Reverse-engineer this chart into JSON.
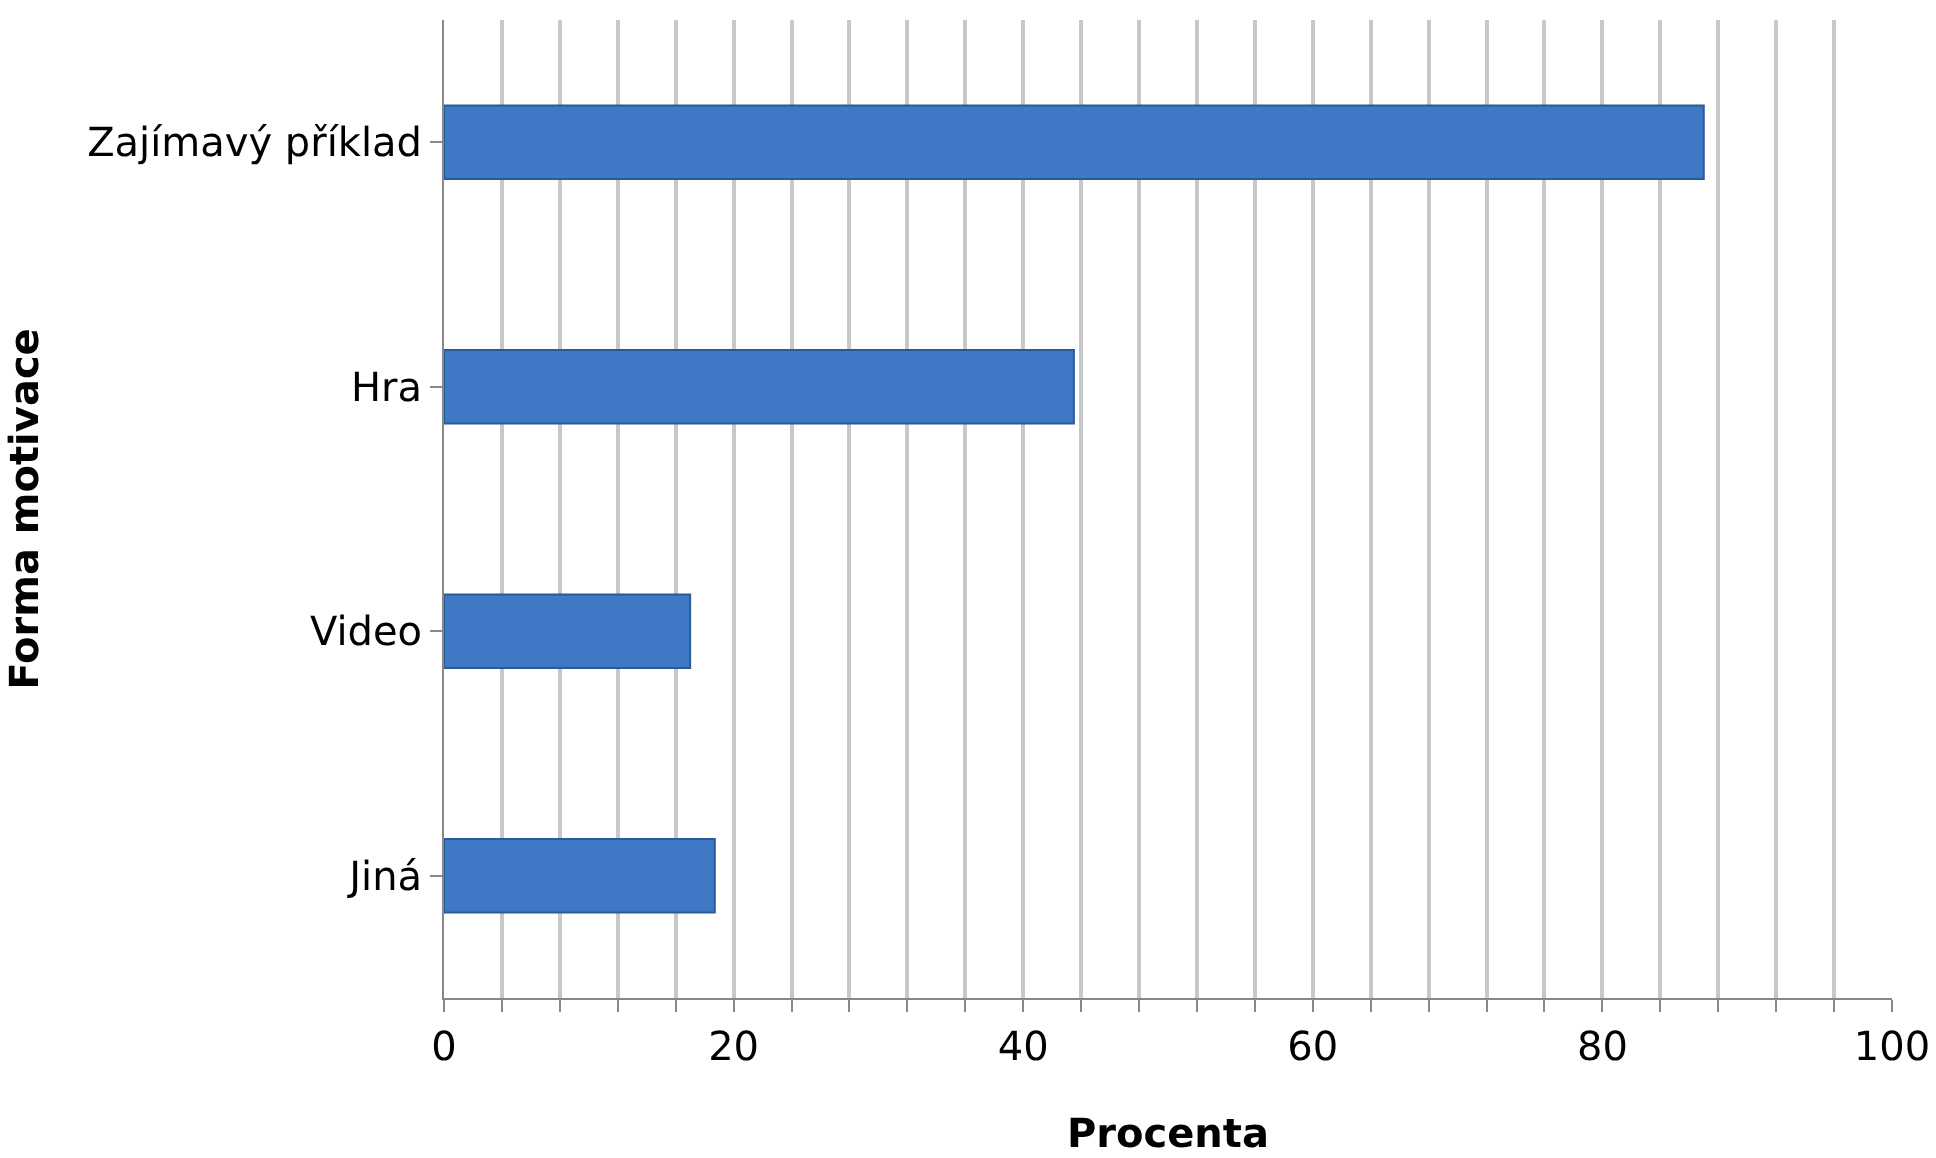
{
  "chart_data": {
    "type": "bar",
    "orientation": "horizontal",
    "xlabel": "Procenta",
    "ylabel": "Forma motivace",
    "categories": [
      "Zajímavý příklad",
      "Hra",
      "Video",
      "Jiná"
    ],
    "values": [
      87,
      43.5,
      17,
      18.7
    ],
    "color": "#3f78c4",
    "xlim": [
      0,
      100
    ],
    "xticks": [
      0,
      {
        "value": 4,
        "label": null
      },
      {
        "value": 8,
        "label": null
      },
      {
        "value": 12,
        "label": null
      },
      {
        "value": 16,
        "label": null
      },
      20,
      {
        "value": 24,
        "label": null
      },
      {
        "value": 28,
        "label": null
      },
      {
        "value": 32,
        "label": null
      },
      {
        "value": 36,
        "label": null
      },
      40,
      {
        "value": 44,
        "label": null
      },
      {
        "value": 48,
        "label": null
      },
      {
        "value": 52,
        "label": null
      },
      {
        "value": 56,
        "label": null
      },
      60,
      {
        "value": 64,
        "label": null
      },
      {
        "value": 68,
        "label": null
      },
      {
        "value": 72,
        "label": null
      },
      {
        "value": 76,
        "label": null
      },
      80,
      {
        "value": 84,
        "label": null
      },
      {
        "value": 88,
        "label": null
      },
      {
        "value": 92,
        "label": null
      },
      {
        "value": 96,
        "label": null
      },
      100
    ],
    "grid": "x",
    "legend": false
  }
}
